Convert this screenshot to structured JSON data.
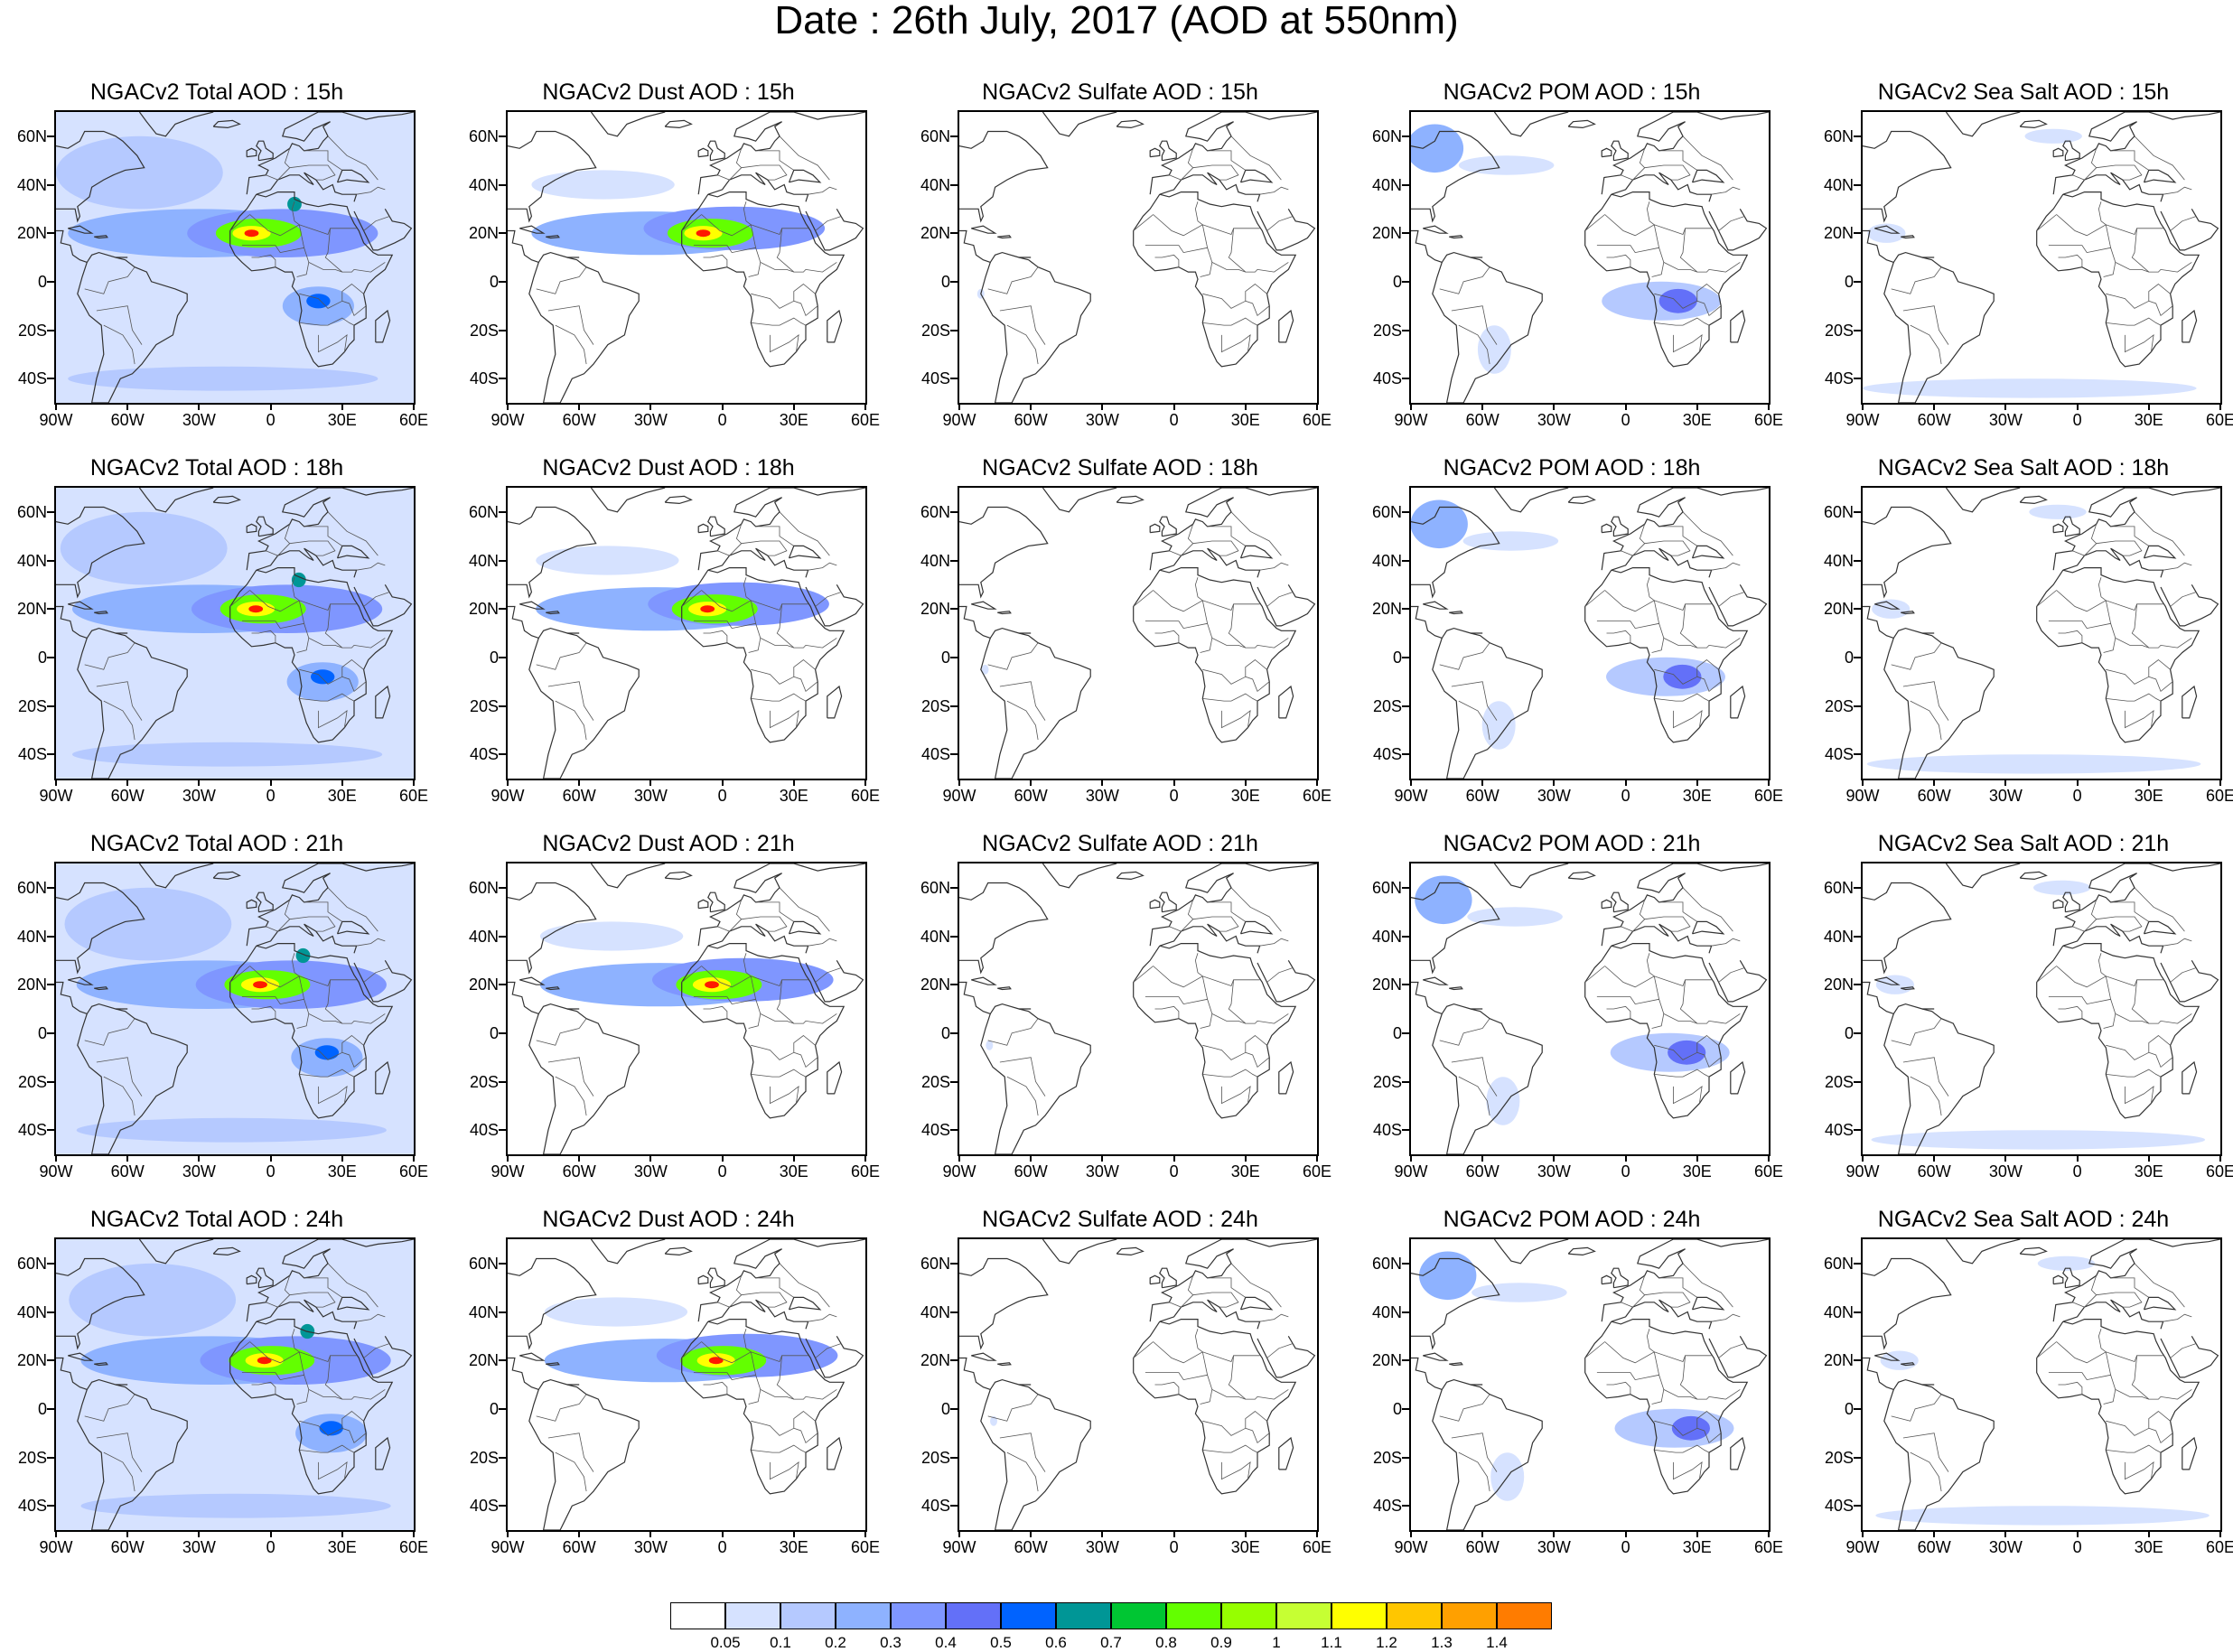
{
  "title": "Date : 26th July, 2017 (AOD at 550nm)",
  "lat_ticks": [
    "60N",
    "40N",
    "20N",
    "0",
    "20S",
    "40S"
  ],
  "lat_values": [
    60,
    40,
    20,
    0,
    -20,
    -40
  ],
  "lon_ticks": [
    "90W",
    "60W",
    "30W",
    "0",
    "30E",
    "60E"
  ],
  "lon_values": [
    -90,
    -60,
    -30,
    0,
    30,
    60
  ],
  "map_extent": {
    "lon_min": -90,
    "lon_max": 60,
    "lat_min": -50,
    "lat_max": 70
  },
  "panels": [
    {
      "title": "NGACv2 Total AOD : 15h",
      "species": "total",
      "hour": 15
    },
    {
      "title": "NGACv2 Dust AOD : 15h",
      "species": "dust",
      "hour": 15
    },
    {
      "title": "NGACv2 Sulfate AOD : 15h",
      "species": "sulfate",
      "hour": 15
    },
    {
      "title": "NGACv2 POM AOD : 15h",
      "species": "pom",
      "hour": 15
    },
    {
      "title": "NGACv2 Sea Salt AOD : 15h",
      "species": "seasalt",
      "hour": 15
    },
    {
      "title": "NGACv2 Total AOD : 18h",
      "species": "total",
      "hour": 18
    },
    {
      "title": "NGACv2 Dust AOD : 18h",
      "species": "dust",
      "hour": 18
    },
    {
      "title": "NGACv2 Sulfate AOD : 18h",
      "species": "sulfate",
      "hour": 18
    },
    {
      "title": "NGACv2 POM AOD : 18h",
      "species": "pom",
      "hour": 18
    },
    {
      "title": "NGACv2 Sea Salt AOD : 18h",
      "species": "seasalt",
      "hour": 18
    },
    {
      "title": "NGACv2 Total AOD : 21h",
      "species": "total",
      "hour": 21
    },
    {
      "title": "NGACv2 Dust AOD : 21h",
      "species": "dust",
      "hour": 21
    },
    {
      "title": "NGACv2 Sulfate AOD : 21h",
      "species": "sulfate",
      "hour": 21
    },
    {
      "title": "NGACv2 POM AOD : 21h",
      "species": "pom",
      "hour": 21
    },
    {
      "title": "NGACv2 Sea Salt AOD : 21h",
      "species": "seasalt",
      "hour": 21
    },
    {
      "title": "NGACv2 Total AOD : 24h",
      "species": "total",
      "hour": 24
    },
    {
      "title": "NGACv2 Dust AOD : 24h",
      "species": "dust",
      "hour": 24
    },
    {
      "title": "NGACv2 Sulfate AOD : 24h",
      "species": "sulfate",
      "hour": 24
    },
    {
      "title": "NGACv2 POM AOD : 24h",
      "species": "pom",
      "hour": 24
    },
    {
      "title": "NGACv2 Sea Salt  AOD : 24h",
      "species": "seasalt",
      "hour": 24
    }
  ],
  "colorbar": {
    "labels": [
      "0.05",
      "0.1",
      "0.2",
      "0.3",
      "0.4",
      "0.5",
      "0.6",
      "0.7",
      "0.8",
      "0.9",
      "1",
      "1.1",
      "1.2",
      "1.3",
      "1.4"
    ],
    "colors": [
      "#ffffff",
      "#d6e2ff",
      "#b5c9ff",
      "#8eb2ff",
      "#7f96ff",
      "#6370f8",
      "#0063ff",
      "#009696",
      "#00c633",
      "#63ff00",
      "#96ff00",
      "#c6ff33",
      "#ffff00",
      "#ffc600",
      "#ffa000",
      "#ff7c00",
      "#ff1900"
    ]
  }
}
